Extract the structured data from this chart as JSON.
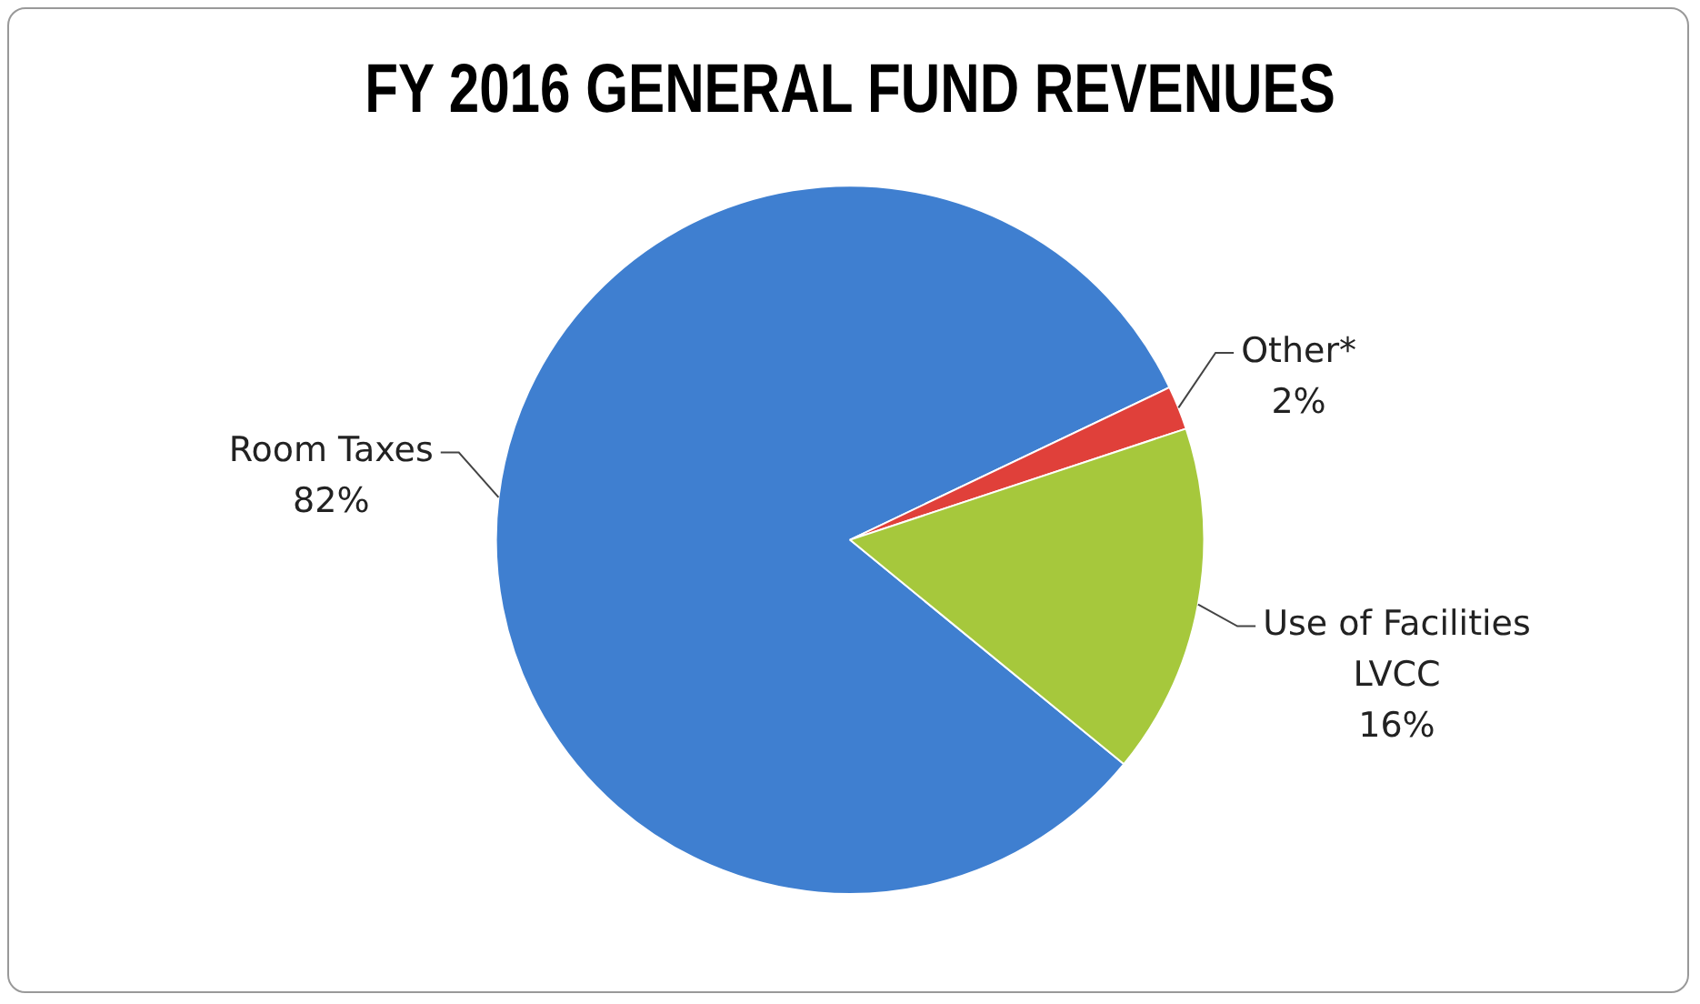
{
  "chart_data": {
    "type": "pie",
    "title": "FY 2016 GENERAL FUND REVENUES",
    "categories": [
      "Room Taxes",
      "Other*",
      "Use of Facilities LVCC"
    ],
    "values": [
      82,
      2,
      16
    ],
    "colors": [
      "#3f7fd0",
      "#e0403a",
      "#a6c83c"
    ],
    "value_labels": [
      "82%",
      "2%",
      "16%"
    ],
    "legend": false
  }
}
